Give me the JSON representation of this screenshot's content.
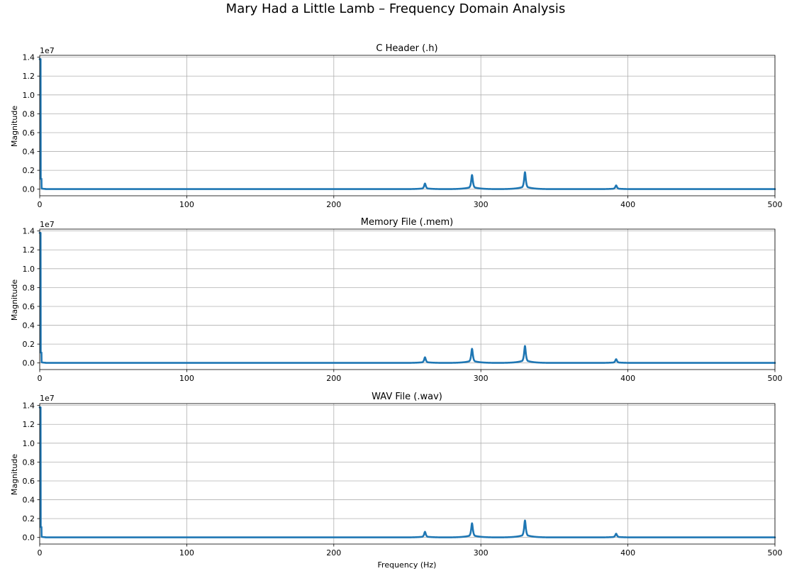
{
  "figure": {
    "title": "Mary Had a Little Lamb – Frequency Domain Analysis"
  },
  "chart_data": [
    {
      "type": "line",
      "title": "C Header (.h)",
      "xlabel": "",
      "ylabel": "Magnitude",
      "y_offset_label": "1e7",
      "xlim": [
        0,
        500
      ],
      "ylim": [
        -0.07,
        1.42
      ],
      "y_scale": 10000000,
      "x_ticks": [
        0,
        100,
        200,
        300,
        400,
        500
      ],
      "y_ticks": [
        0.0,
        0.2,
        0.4,
        0.6,
        0.8,
        1.0,
        1.2,
        1.4
      ],
      "grid": true,
      "color": "#1f77b4",
      "dc_peak": 1.38,
      "peaks": [
        {
          "freq": 262,
          "value": 0.06
        },
        {
          "freq": 294,
          "value": 0.15
        },
        {
          "freq": 330,
          "value": 0.18
        },
        {
          "freq": 392,
          "value": 0.04
        }
      ]
    },
    {
      "type": "line",
      "title": "Memory File (.mem)",
      "xlabel": "",
      "ylabel": "Magnitude",
      "y_offset_label": "1e7",
      "xlim": [
        0,
        500
      ],
      "ylim": [
        -0.07,
        1.42
      ],
      "y_scale": 10000000,
      "x_ticks": [
        0,
        100,
        200,
        300,
        400,
        500
      ],
      "y_ticks": [
        0.0,
        0.2,
        0.4,
        0.6,
        0.8,
        1.0,
        1.2,
        1.4
      ],
      "grid": true,
      "color": "#1f77b4",
      "dc_peak": 1.38,
      "peaks": [
        {
          "freq": 262,
          "value": 0.06
        },
        {
          "freq": 294,
          "value": 0.15
        },
        {
          "freq": 330,
          "value": 0.18
        },
        {
          "freq": 392,
          "value": 0.04
        }
      ]
    },
    {
      "type": "line",
      "title": "WAV File (.wav)",
      "xlabel": "Frequency (Hz)",
      "ylabel": "Magnitude",
      "y_offset_label": "1e7",
      "xlim": [
        0,
        500
      ],
      "ylim": [
        -0.07,
        1.42
      ],
      "y_scale": 10000000,
      "x_ticks": [
        0,
        100,
        200,
        300,
        400,
        500
      ],
      "y_ticks": [
        0.0,
        0.2,
        0.4,
        0.6,
        0.8,
        1.0,
        1.2,
        1.4
      ],
      "grid": true,
      "color": "#1f77b4",
      "dc_peak": 1.38,
      "peaks": [
        {
          "freq": 262,
          "value": 0.06
        },
        {
          "freq": 294,
          "value": 0.15
        },
        {
          "freq": 330,
          "value": 0.18
        },
        {
          "freq": 392,
          "value": 0.04
        }
      ]
    }
  ]
}
